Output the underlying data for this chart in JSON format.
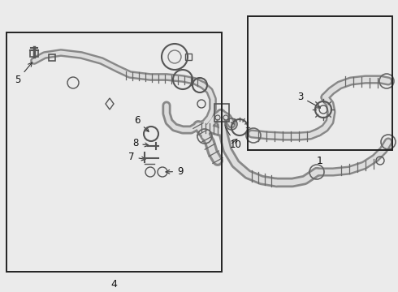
{
  "fig_bg": "#ebebeb",
  "line_color": "#444444",
  "box_color": "#222222",
  "label_color": "#111111",
  "hose_outer": "#888888",
  "hose_inner": "#dddddd",
  "hose_lw_outer": 6.5,
  "hose_lw_inner": 3.5
}
